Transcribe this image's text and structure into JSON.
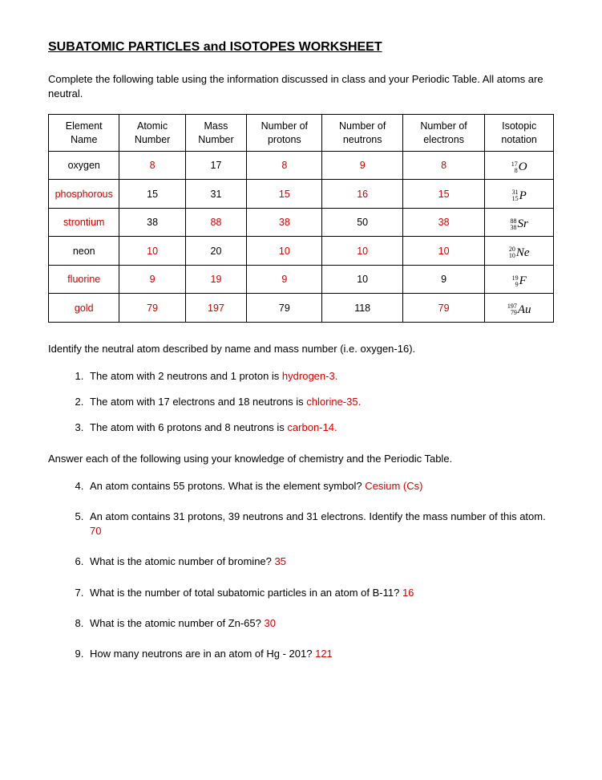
{
  "title": "SUBATOMIC PARTICLES and ISOTOPES WORKSHEET",
  "instructions": "Complete the following table using the information discussed in class and your Periodic Table.  All atoms are neutral.",
  "headers": {
    "c1": "Element Name",
    "c2": "Atomic Number",
    "c3": "Mass Number",
    "c4": "Number of protons",
    "c5": "Number of neutrons",
    "c6": "Number of electrons",
    "c7": "Isotopic notation"
  },
  "rows": [
    {
      "name": "oxygen",
      "name_red": false,
      "atomic": "8",
      "atomic_red": true,
      "mass": "17",
      "mass_red": false,
      "protons": "8",
      "protons_red": true,
      "neutrons": "9",
      "neutrons_red": true,
      "electrons": "8",
      "electrons_red": true,
      "iso_top": "17",
      "iso_bot": "8",
      "iso_sym": "O"
    },
    {
      "name": "phosphorous",
      "name_red": true,
      "atomic": "15",
      "atomic_red": false,
      "mass": "31",
      "mass_red": false,
      "protons": "15",
      "protons_red": true,
      "neutrons": "16",
      "neutrons_red": true,
      "electrons": "15",
      "electrons_red": true,
      "iso_top": "31",
      "iso_bot": "15",
      "iso_sym": "P"
    },
    {
      "name": "strontium",
      "name_red": true,
      "atomic": "38",
      "atomic_red": false,
      "mass": "88",
      "mass_red": true,
      "protons": "38",
      "protons_red": true,
      "neutrons": "50",
      "neutrons_red": false,
      "electrons": "38",
      "electrons_red": true,
      "iso_top": "88",
      "iso_bot": "38",
      "iso_sym": "Sr"
    },
    {
      "name": "neon",
      "name_red": false,
      "atomic": "10",
      "atomic_red": true,
      "mass": "20",
      "mass_red": false,
      "protons": "10",
      "protons_red": true,
      "neutrons": "10",
      "neutrons_red": true,
      "electrons": "10",
      "electrons_red": true,
      "iso_top": "20",
      "iso_bot": "10",
      "iso_sym": "Ne"
    },
    {
      "name": "fluorine",
      "name_red": true,
      "atomic": "9",
      "atomic_red": true,
      "mass": "19",
      "mass_red": true,
      "protons": "9",
      "protons_red": true,
      "neutrons": "10",
      "neutrons_red": false,
      "electrons": "9",
      "electrons_red": false,
      "iso_top": "19",
      "iso_bot": "9",
      "iso_sym": "F"
    },
    {
      "name": "gold",
      "name_red": true,
      "atomic": "79",
      "atomic_red": true,
      "mass": "197",
      "mass_red": true,
      "protons": "79",
      "protons_red": false,
      "neutrons": "118",
      "neutrons_red": false,
      "electrons": "79",
      "electrons_red": true,
      "iso_top": "197",
      "iso_bot": "79",
      "iso_sym": "Au"
    }
  ],
  "section2": "Identify the neutral atom described by name and mass number (i.e. oxygen-16).",
  "q1": {
    "text": "The atom with 2 neutrons and 1 proton is ",
    "ans": "hydrogen-3."
  },
  "q2": {
    "text": "The atom with 17 electrons and 18 neutrons is ",
    "ans": "chlorine-35."
  },
  "q3": {
    "text": "The atom with 6 protons and 8 neutrons is ",
    "ans": "carbon-14."
  },
  "section3": "Answer each of the following using your knowledge of chemistry and the Periodic Table.",
  "q4": {
    "text": "An atom contains 55 protons.  What is the element symbol?  ",
    "ans": "Cesium (Cs)"
  },
  "q5": {
    "text": "An atom contains 31 protons, 39 neutrons and 31 electrons. Identify the mass number of this atom.  ",
    "ans": "70"
  },
  "q6": {
    "text": "What is the atomic number of bromine?  ",
    "ans": "35"
  },
  "q7": {
    "text": "What is the number of total subatomic particles in an atom of B-11? ",
    "ans": "16"
  },
  "q8": {
    "text": "What is the atomic number of Zn-65?      ",
    "ans": "30"
  },
  "q9": {
    "text": "How many neutrons are in an atom of Hg - 201?  ",
    "ans": "121"
  }
}
